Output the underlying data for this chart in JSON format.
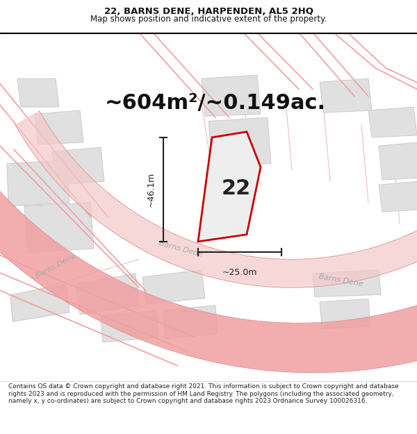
{
  "title_line1": "22, BARNS DENE, HARPENDEN, AL5 2HQ",
  "title_line2": "Map shows position and indicative extent of the property.",
  "area_label": "~604m²/~0.149ac.",
  "number_label": "22",
  "dim_height": "~46.1m",
  "dim_width": "~25.0m",
  "street_label_diag": "Barns Dene",
  "street_label_curve1": "Barns Dene",
  "street_label_curve2": "Barns Dene",
  "footer_text": "Contains OS data © Crown copyright and database right 2021. This information is subject to Crown copyright and database rights 2023 and is reproduced with the permission of HM Land Registry. The polygons (including the associated geometry, namely x, y co-ordinates) are subject to Crown copyright and database rights 2023 Ordnance Survey 100026316.",
  "bg_color": "#ffffff",
  "map_bg": "#f7f7f7",
  "road_line_color": "#f0a0a0",
  "road_line_color2": "#f5c8c8",
  "building_fill": "#e0e0e0",
  "building_edge": "#cccccc",
  "plot_line_color": "#f0c0c0",
  "highlight_edge": "#cc0000",
  "dim_line_color": "#222222",
  "street_color": "#bbbbbb",
  "title_fontsize": 9.5,
  "subtitle_fontsize": 8.5,
  "area_fontsize": 22,
  "number_fontsize": 22,
  "dim_fontsize": 9,
  "street_fontsize": 8,
  "footer_fontsize": 6.5
}
